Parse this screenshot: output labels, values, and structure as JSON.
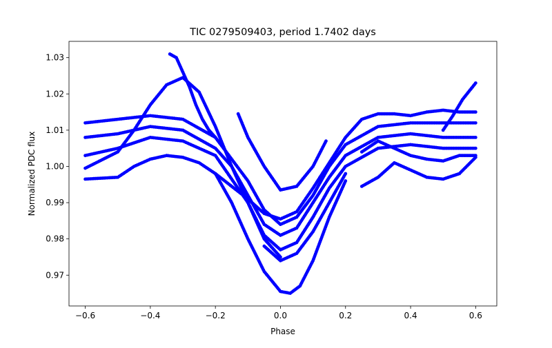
{
  "chart_data": {
    "type": "scatter",
    "title": "TIC 0279509403, period 1.7402 days",
    "xlabel": "Phase",
    "ylabel": "Normalized PDC flux",
    "xlim": [
      -0.65,
      0.665
    ],
    "ylim": [
      0.9615,
      1.0345
    ],
    "x_ticks": [
      -0.6,
      -0.4,
      -0.2,
      0.0,
      0.2,
      0.4,
      0.6
    ],
    "x_tick_labels": [
      "−0.6",
      "−0.4",
      "−0.2",
      "0.0",
      "0.2",
      "0.4",
      "0.6"
    ],
    "y_ticks": [
      0.97,
      0.98,
      0.99,
      1.0,
      1.01,
      1.02,
      1.03
    ],
    "y_tick_labels": [
      "0.97",
      "0.98",
      "0.99",
      "1.00",
      "1.01",
      "1.02",
      "1.03"
    ],
    "grid": false,
    "marker_color": "#0000ff",
    "series": [
      {
        "points": [
          [
            -0.6,
            1.008
          ],
          [
            -0.5,
            1.009
          ],
          [
            -0.4,
            1.011
          ],
          [
            -0.3,
            1.01
          ],
          [
            -0.2,
            1.005
          ],
          [
            -0.15,
            1.0
          ],
          [
            -0.1,
            0.992
          ],
          [
            -0.05,
            0.984
          ],
          [
            0.0,
            0.981
          ],
          [
            0.05,
            0.983
          ],
          [
            0.1,
            0.99
          ],
          [
            0.15,
            0.997
          ],
          [
            0.2,
            1.003
          ],
          [
            0.3,
            1.008
          ],
          [
            0.4,
            1.009
          ],
          [
            0.5,
            1.008
          ],
          [
            0.6,
            1.008
          ]
        ]
      },
      {
        "points": [
          [
            -0.6,
            1.003
          ],
          [
            -0.5,
            1.005
          ],
          [
            -0.4,
            1.008
          ],
          [
            -0.3,
            1.007
          ],
          [
            -0.2,
            1.003
          ],
          [
            -0.1,
            0.99
          ],
          [
            -0.05,
            0.981
          ],
          [
            0.0,
            0.977
          ],
          [
            0.05,
            0.979
          ],
          [
            0.1,
            0.986
          ],
          [
            0.15,
            0.994
          ],
          [
            0.2,
            1.0
          ],
          [
            0.3,
            1.005
          ],
          [
            0.4,
            1.006
          ],
          [
            0.5,
            1.005
          ],
          [
            0.6,
            1.005
          ]
        ]
      },
      {
        "points": [
          [
            -0.6,
            1.012
          ],
          [
            -0.5,
            1.013
          ],
          [
            -0.4,
            1.014
          ],
          [
            -0.3,
            1.013
          ],
          [
            -0.2,
            1.008
          ],
          [
            -0.1,
            0.996
          ],
          [
            -0.05,
            0.988
          ],
          [
            0.0,
            0.984
          ],
          [
            0.05,
            0.986
          ],
          [
            0.1,
            0.992
          ],
          [
            0.15,
            1.0
          ],
          [
            0.2,
            1.006
          ],
          [
            0.3,
            1.011
          ],
          [
            0.4,
            1.012
          ],
          [
            0.5,
            1.012
          ],
          [
            0.6,
            1.012
          ]
        ]
      },
      {
        "points": [
          [
            -0.6,
            0.9965
          ],
          [
            -0.5,
            0.997
          ],
          [
            -0.45,
            1.0
          ],
          [
            -0.4,
            1.002
          ],
          [
            -0.35,
            1.003
          ],
          [
            -0.3,
            1.0025
          ],
          [
            -0.25,
            1.001
          ],
          [
            -0.2,
            0.998
          ],
          [
            -0.15,
            0.99
          ],
          [
            -0.1,
            0.98
          ],
          [
            -0.05,
            0.971
          ],
          [
            0.0,
            0.9655
          ],
          [
            0.03,
            0.965
          ],
          [
            0.06,
            0.967
          ],
          [
            0.1,
            0.974
          ],
          [
            0.15,
            0.986
          ],
          [
            0.2,
            0.996
          ]
        ]
      },
      {
        "points": [
          [
            -0.6,
            0.9995
          ],
          [
            -0.5,
            1.004
          ],
          [
            -0.45,
            1.01
          ],
          [
            -0.4,
            1.017
          ],
          [
            -0.35,
            1.0225
          ],
          [
            -0.3,
            1.0245
          ],
          [
            -0.25,
            1.0205
          ],
          [
            -0.2,
            1.011
          ],
          [
            -0.15,
            1.0
          ],
          [
            -0.1,
            0.99
          ],
          [
            -0.05,
            0.98
          ],
          [
            0.0,
            0.975
          ]
        ]
      },
      {
        "points": [
          [
            -0.34,
            1.031
          ],
          [
            -0.32,
            1.03
          ],
          [
            -0.3,
            1.026
          ],
          [
            -0.28,
            1.022
          ],
          [
            -0.26,
            1.017
          ],
          [
            -0.24,
            1.013
          ],
          [
            -0.22,
            1.01
          ],
          [
            -0.2,
            1.008
          ]
        ]
      },
      {
        "points": [
          [
            -0.13,
            1.0145
          ],
          [
            -0.1,
            1.008
          ],
          [
            -0.05,
            1.0
          ],
          [
            0.0,
            0.9935
          ],
          [
            0.05,
            0.9945
          ],
          [
            0.1,
            1.0
          ],
          [
            0.14,
            1.007
          ]
        ]
      },
      {
        "points": [
          [
            -0.2,
            0.998
          ],
          [
            -0.1,
            0.991
          ],
          [
            -0.05,
            0.987
          ],
          [
            0.0,
            0.9855
          ],
          [
            0.05,
            0.9875
          ],
          [
            0.1,
            0.994
          ],
          [
            0.15,
            1.001
          ],
          [
            0.2,
            1.008
          ],
          [
            0.25,
            1.013
          ],
          [
            0.3,
            1.0145
          ],
          [
            0.35,
            1.0145
          ],
          [
            0.4,
            1.014
          ],
          [
            0.45,
            1.015
          ],
          [
            0.5,
            1.0155
          ],
          [
            0.55,
            1.015
          ],
          [
            0.6,
            1.015
          ]
        ]
      },
      {
        "points": [
          [
            0.25,
            0.9945
          ],
          [
            0.3,
            0.997
          ],
          [
            0.35,
            1.001
          ],
          [
            0.4,
            0.999
          ],
          [
            0.45,
            0.997
          ],
          [
            0.5,
            0.9965
          ],
          [
            0.55,
            0.998
          ],
          [
            0.6,
            1.0025
          ]
        ]
      },
      {
        "points": [
          [
            0.25,
            1.004
          ],
          [
            0.3,
            1.007
          ],
          [
            0.35,
            1.005
          ],
          [
            0.4,
            1.003
          ],
          [
            0.45,
            1.002
          ],
          [
            0.5,
            1.0015
          ],
          [
            0.55,
            1.003
          ],
          [
            0.6,
            1.003
          ]
        ]
      },
      {
        "points": [
          [
            0.5,
            1.01
          ],
          [
            0.53,
            1.014
          ],
          [
            0.56,
            1.0185
          ],
          [
            0.6,
            1.023
          ]
        ]
      },
      {
        "points": [
          [
            -0.05,
            0.978
          ],
          [
            0.0,
            0.974
          ],
          [
            0.05,
            0.976
          ],
          [
            0.1,
            0.982
          ],
          [
            0.15,
            0.99
          ],
          [
            0.2,
            0.998
          ]
        ]
      }
    ]
  }
}
